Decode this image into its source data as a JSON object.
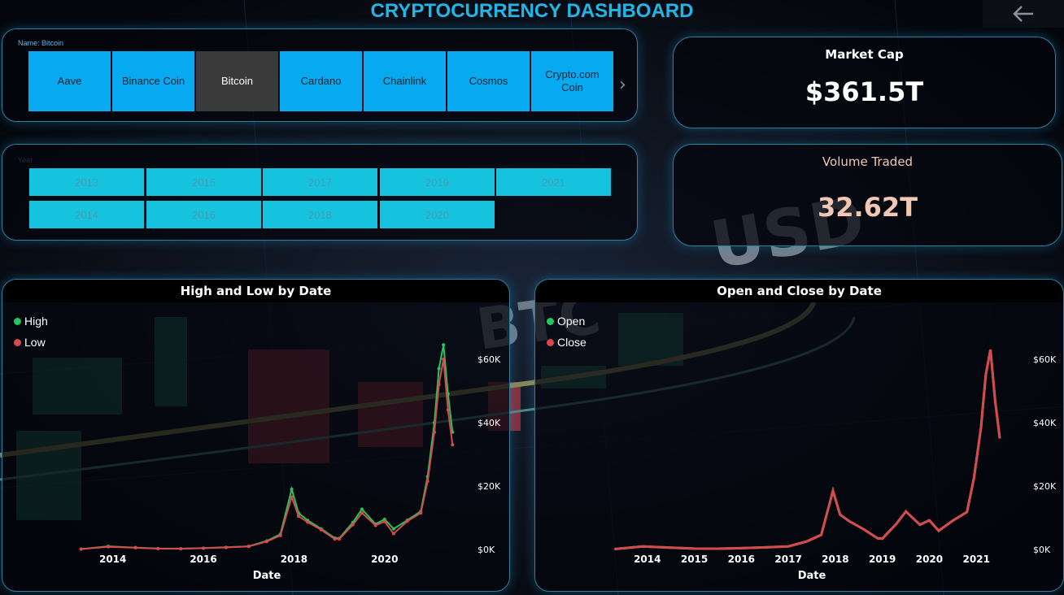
{
  "dashboard": {
    "title": "CRYPTOCURRENCY DASHBOARD"
  },
  "name_slicer": {
    "label": "Name: Bitcoin",
    "items": [
      "Aave",
      "Binance Coin",
      "Bitcoin",
      "Cardano",
      "Chainlink",
      "Cosmos",
      "Crypto.com Coin"
    ],
    "selected": "Bitcoin"
  },
  "year_slicer": {
    "label": "Year",
    "row1": [
      "2013",
      "2015",
      "2017",
      "2019",
      "2021"
    ],
    "row2": [
      "2014",
      "2016",
      "2018",
      "2020"
    ]
  },
  "market_cap": {
    "title": "Market Cap",
    "value": "$361.5T"
  },
  "volume": {
    "title": "Volume Traded",
    "value": "32.62T"
  },
  "colors": {
    "accent": "#20b6e8",
    "slicer_button": "#07a9f0",
    "slicer_selected": "#3a3a3a",
    "year_button": "#15c3df",
    "series_green": "#22c55e",
    "series_red": "#d9484e",
    "volume_value": "#f2c7b3"
  },
  "chart_data": [
    {
      "type": "line",
      "title": "High and Low by Date",
      "xlabel": "Date",
      "ylabel": "",
      "x_ticks": [
        "2014",
        "2016",
        "2018",
        "2020"
      ],
      "y_ticks": [
        "$0K",
        "$20K",
        "$40K",
        "$60K"
      ],
      "ylim": [
        0,
        62000
      ],
      "legend_position": "top-left",
      "series": [
        {
          "name": "High",
          "color": "#22c55e",
          "x": [
            2013.3,
            2013.9,
            2014.5,
            2015.0,
            2015.5,
            2016.0,
            2016.5,
            2017.0,
            2017.4,
            2017.7,
            2017.95,
            2018.1,
            2018.3,
            2018.6,
            2018.9,
            2019.0,
            2019.3,
            2019.5,
            2019.8,
            2020.0,
            2020.2,
            2020.5,
            2020.8,
            2020.95,
            2021.1,
            2021.2,
            2021.3,
            2021.4,
            2021.5
          ],
          "y": [
            140,
            1000,
            600,
            300,
            260,
            430,
            680,
            1000,
            2700,
            4800,
            19000,
            11500,
            9200,
            6500,
            3600,
            3500,
            8500,
            12700,
            8000,
            9500,
            6500,
            9200,
            12000,
            23000,
            40000,
            57000,
            64500,
            49000,
            37000
          ]
        },
        {
          "name": "Low",
          "color": "#d9484e",
          "x": [
            2013.3,
            2013.9,
            2014.5,
            2015.0,
            2015.5,
            2016.0,
            2016.5,
            2017.0,
            2017.4,
            2017.7,
            2017.95,
            2018.1,
            2018.3,
            2018.6,
            2018.9,
            2019.0,
            2019.3,
            2019.5,
            2019.8,
            2020.0,
            2020.2,
            2020.5,
            2020.8,
            2020.95,
            2021.1,
            2021.2,
            2021.3,
            2021.4,
            2021.5
          ],
          "y": [
            120,
            850,
            550,
            250,
            230,
            400,
            630,
            950,
            2500,
            4400,
            16500,
            10500,
            8600,
            6200,
            3300,
            3300,
            7800,
            11500,
            7600,
            8800,
            5000,
            8900,
            11500,
            21500,
            37000,
            52000,
            60000,
            44000,
            33000
          ]
        }
      ]
    },
    {
      "type": "line",
      "title": "Open and Close by Date",
      "xlabel": "Date",
      "ylabel": "",
      "x_ticks": [
        "2014",
        "2015",
        "2016",
        "2017",
        "2018",
        "2019",
        "2020",
        "2021"
      ],
      "y_ticks": [
        "$0K",
        "$20K",
        "$40K",
        "$60K"
      ],
      "ylim": [
        0,
        62000
      ],
      "legend_position": "top-left",
      "series": [
        {
          "name": "Open",
          "color": "#22c55e",
          "x": [
            2013.3,
            2013.9,
            2014.5,
            2015.0,
            2015.5,
            2016.0,
            2016.5,
            2017.0,
            2017.4,
            2017.7,
            2017.95,
            2018.1,
            2018.3,
            2018.6,
            2018.9,
            2019.0,
            2019.3,
            2019.5,
            2019.8,
            2020.0,
            2020.2,
            2020.5,
            2020.8,
            2020.95,
            2021.1,
            2021.2,
            2021.3,
            2021.4,
            2021.5
          ],
          "y": [
            130,
            950,
            580,
            280,
            250,
            420,
            660,
            980,
            2600,
            4600,
            18500,
            11000,
            8900,
            6400,
            3500,
            3400,
            8100,
            12000,
            7800,
            9200,
            5900,
            9100,
            11800,
            22500,
            38500,
            55000,
            63000,
            47000,
            35000
          ]
        },
        {
          "name": "Close",
          "color": "#d9484e",
          "x": [
            2013.3,
            2013.9,
            2014.5,
            2015.0,
            2015.5,
            2016.0,
            2016.5,
            2017.0,
            2017.4,
            2017.7,
            2017.95,
            2018.1,
            2018.3,
            2018.6,
            2018.9,
            2019.0,
            2019.3,
            2019.5,
            2019.8,
            2020.0,
            2020.2,
            2020.5,
            2020.8,
            2020.95,
            2021.1,
            2021.2,
            2021.3,
            2021.4,
            2021.5
          ],
          "y": [
            130,
            950,
            580,
            280,
            250,
            420,
            660,
            980,
            2600,
            4600,
            18500,
            11000,
            8900,
            6400,
            3500,
            3400,
            8100,
            12000,
            7800,
            9200,
            5900,
            9100,
            11800,
            22500,
            38500,
            55000,
            63000,
            47000,
            35000
          ]
        }
      ]
    }
  ]
}
